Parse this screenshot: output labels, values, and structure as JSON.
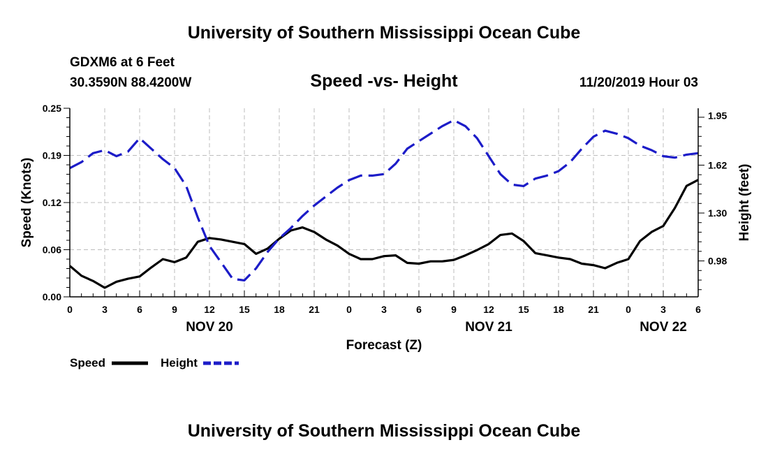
{
  "page": {
    "header_title": "University of Southern Mississippi Ocean Cube",
    "footer_title": "University of Southern Mississippi Ocean Cube",
    "station_line": "GDXM6 at 6 Feet",
    "coords_line": "30.3590N 88.4200W",
    "date_line": "11/20/2019 Hour 03"
  },
  "chart_data": {
    "type": "line",
    "title": "Speed -vs- Height",
    "xlabel": "Forecast (Z)",
    "ylabel": "Speed (Knots)",
    "y2label": "Height (feet)",
    "xlim": [
      0,
      54
    ],
    "ylim": [
      0,
      0.25
    ],
    "y2lim": [
      0.74,
      2.0
    ],
    "x_ticks": [
      {
        "x": 0,
        "label": "0"
      },
      {
        "x": 3,
        "label": "3"
      },
      {
        "x": 6,
        "label": "6"
      },
      {
        "x": 9,
        "label": "9"
      },
      {
        "x": 12,
        "label": "12"
      },
      {
        "x": 15,
        "label": "15"
      },
      {
        "x": 18,
        "label": "18"
      },
      {
        "x": 21,
        "label": "21"
      },
      {
        "x": 24,
        "label": "0"
      },
      {
        "x": 27,
        "label": "3"
      },
      {
        "x": 30,
        "label": "6"
      },
      {
        "x": 33,
        "label": "9"
      },
      {
        "x": 36,
        "label": "12"
      },
      {
        "x": 39,
        "label": "15"
      },
      {
        "x": 42,
        "label": "18"
      },
      {
        "x": 45,
        "label": "21"
      },
      {
        "x": 48,
        "label": "0"
      },
      {
        "x": 51,
        "label": "3"
      },
      {
        "x": 54,
        "label": "6"
      }
    ],
    "date_labels": [
      {
        "x": 12,
        "label": "NOV 20"
      },
      {
        "x": 36,
        "label": "NOV 21"
      },
      {
        "x": 51,
        "label": "NOV 22"
      }
    ],
    "y_ticks": [
      {
        "value": 0.0,
        "label": "0.00"
      },
      {
        "value": 0.0625,
        "label": "0.06"
      },
      {
        "value": 0.125,
        "label": "0.12"
      },
      {
        "value": 0.1875,
        "label": "0.19"
      },
      {
        "value": 0.25,
        "label": "0.25"
      }
    ],
    "y2_ticks": [
      {
        "value": 0.98,
        "label": "0.98"
      },
      {
        "value": 1.3,
        "label": "1.30"
      },
      {
        "value": 1.62,
        "label": "1.62"
      },
      {
        "value": 1.95,
        "label": "1.95"
      }
    ],
    "grid": true,
    "legend_position": "bottom-left",
    "series": [
      {
        "name": "Speed",
        "axis": "left",
        "color": "#000000",
        "dash": "solid",
        "x": [
          0,
          1,
          2,
          3,
          4,
          5,
          6,
          7,
          8,
          9,
          10,
          11,
          12,
          13,
          14,
          15,
          16,
          17,
          18,
          19,
          20,
          21,
          22,
          23,
          24,
          25,
          26,
          27,
          28,
          29,
          30,
          31,
          32,
          33,
          34,
          35,
          36,
          37,
          38,
          39,
          40,
          41,
          42,
          43,
          44,
          45,
          46,
          47,
          48,
          49,
          50,
          51,
          52,
          53,
          54
        ],
        "values": [
          0.041,
          0.028,
          0.021,
          0.012,
          0.02,
          0.024,
          0.027,
          0.039,
          0.05,
          0.046,
          0.052,
          0.073,
          0.078,
          0.076,
          0.073,
          0.07,
          0.057,
          0.064,
          0.077,
          0.088,
          0.092,
          0.086,
          0.076,
          0.068,
          0.057,
          0.05,
          0.05,
          0.054,
          0.055,
          0.045,
          0.044,
          0.047,
          0.047,
          0.049,
          0.055,
          0.062,
          0.07,
          0.082,
          0.084,
          0.074,
          0.058,
          0.055,
          0.052,
          0.05,
          0.044,
          0.042,
          0.038,
          0.045,
          0.05,
          0.074,
          0.086,
          0.094,
          0.118,
          0.147,
          0.155
        ]
      },
      {
        "name": "Height",
        "axis": "right",
        "color": "#1c1cc8",
        "dash": "dashed",
        "x": [
          0,
          1,
          2,
          3,
          4,
          5,
          6,
          7,
          8,
          9,
          10,
          11,
          12,
          13,
          14,
          15,
          16,
          17,
          18,
          19,
          20,
          21,
          22,
          23,
          24,
          25,
          26,
          27,
          28,
          29,
          30,
          31,
          32,
          33,
          34,
          35,
          36,
          37,
          38,
          39,
          40,
          41,
          42,
          43,
          44,
          45,
          46,
          47,
          48,
          49,
          50,
          51,
          52,
          53,
          54
        ],
        "values": [
          1.6,
          1.64,
          1.7,
          1.72,
          1.68,
          1.71,
          1.8,
          1.73,
          1.66,
          1.6,
          1.48,
          1.27,
          1.08,
          0.97,
          0.86,
          0.85,
          0.93,
          1.04,
          1.13,
          1.2,
          1.28,
          1.35,
          1.41,
          1.47,
          1.52,
          1.55,
          1.55,
          1.56,
          1.63,
          1.73,
          1.78,
          1.83,
          1.88,
          1.92,
          1.88,
          1.8,
          1.68,
          1.56,
          1.49,
          1.48,
          1.53,
          1.55,
          1.58,
          1.64,
          1.73,
          1.81,
          1.85,
          1.83,
          1.8,
          1.75,
          1.72,
          1.68,
          1.67,
          1.69,
          1.7
        ]
      }
    ]
  }
}
